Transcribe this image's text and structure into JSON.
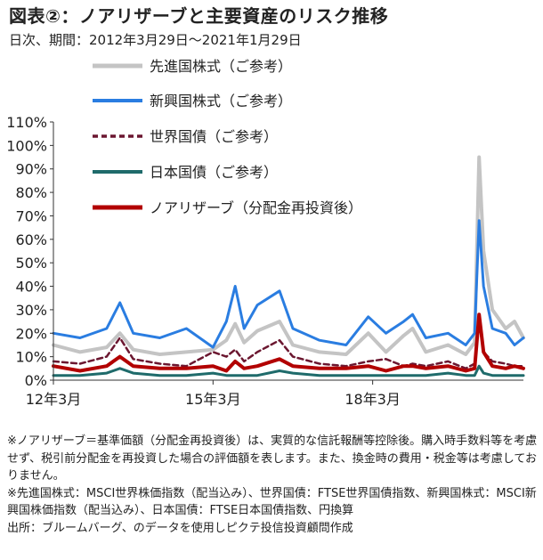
{
  "header": {
    "title": "図表②：ノアリザーブと主要資産のリスク推移",
    "subtitle": "日次、期間：2012年3月29日～2021年1月29日"
  },
  "notes": [
    "※ノアリザーブ＝基準価額（分配金再投資後）は、実質的な信託報酬等控除後。購入時手数料等を考慮せず、税引前分配金を再投資した場合の評価額を表します。また、換金時の費用・税金等は考慮しておりません。",
    "※先進国株式：MSCI世界株価指数（配当込み）、世界国債：FTSE世界国債指数、新興国株式：MSCI新興国株価指数（配当込み）、日本国債：FTSE日本国債指数、円換算",
    "出所：ブルームバーグ、のデータを使用しピクテ投信投資顧問作成"
  ],
  "chart_data": {
    "type": "line",
    "y_unit": "%",
    "ylim": [
      0,
      110
    ],
    "y_ticks": [
      "0%",
      "10%",
      "20%",
      "30%",
      "40%",
      "50%",
      "60%",
      "70%",
      "80%",
      "90%",
      "100%",
      "110%"
    ],
    "xlim": [
      "2012-03",
      "2021-01"
    ],
    "x_ticks": [
      {
        "label": "12年3月",
        "value": "2012-03"
      },
      {
        "label": "15年3月",
        "value": "2015-03"
      },
      {
        "label": "18年3月",
        "value": "2018-03"
      }
    ],
    "grid": false,
    "legend_position": "top-left",
    "x": [
      "2012-03",
      "2012-09",
      "2013-03",
      "2013-06",
      "2013-09",
      "2014-03",
      "2014-09",
      "2015-03",
      "2015-06",
      "2015-08",
      "2015-10",
      "2016-01",
      "2016-06",
      "2016-09",
      "2017-03",
      "2017-09",
      "2018-02",
      "2018-06",
      "2018-10",
      "2018-12",
      "2019-03",
      "2019-08",
      "2019-12",
      "2020-02",
      "2020-03",
      "2020-04",
      "2020-06",
      "2020-09",
      "2020-11",
      "2021-01"
    ],
    "series": [
      {
        "name": "先進国株式（ご参考）",
        "color": "#c4c4c4",
        "width": 4,
        "values": [
          15,
          12,
          14,
          20,
          13,
          11,
          12,
          13,
          17,
          24,
          16,
          21,
          25,
          15,
          12,
          11,
          20,
          12,
          19,
          22,
          12,
          15,
          11,
          16,
          95,
          55,
          30,
          22,
          25,
          18
        ]
      },
      {
        "name": "新興国株式（ご参考）",
        "color": "#2a7de1",
        "width": 3,
        "values": [
          20,
          18,
          22,
          33,
          20,
          18,
          22,
          14,
          25,
          40,
          22,
          32,
          38,
          22,
          17,
          15,
          27,
          20,
          25,
          28,
          18,
          20,
          15,
          20,
          68,
          40,
          22,
          20,
          15,
          18
        ]
      },
      {
        "name": "世界国債（ご参考）",
        "color": "#6b1730",
        "width": 2.5,
        "dash": "6,4",
        "values": [
          8,
          7,
          10,
          18,
          9,
          7,
          6,
          12,
          10,
          13,
          8,
          12,
          17,
          10,
          7,
          6,
          8,
          9,
          6,
          7,
          6,
          8,
          5,
          7,
          25,
          12,
          8,
          7,
          6,
          6
        ]
      },
      {
        "name": "日本国債（ご参考）",
        "color": "#1f6b6b",
        "width": 3,
        "values": [
          2,
          2,
          3,
          5,
          3,
          2,
          2,
          3,
          2,
          2,
          2,
          2,
          4,
          3,
          2,
          2,
          2,
          2,
          2,
          2,
          2,
          3,
          2,
          2,
          6,
          3,
          2,
          2,
          2,
          2
        ]
      },
      {
        "name": "ノアリザーブ（分配金再投資後）",
        "color": "#b20000",
        "width": 4,
        "values": [
          6,
          4,
          6,
          10,
          6,
          5,
          5,
          6,
          4,
          8,
          5,
          6,
          9,
          6,
          5,
          5,
          6,
          4,
          6,
          6,
          5,
          6,
          4,
          5,
          28,
          12,
          6,
          5,
          6,
          5
        ]
      }
    ]
  }
}
